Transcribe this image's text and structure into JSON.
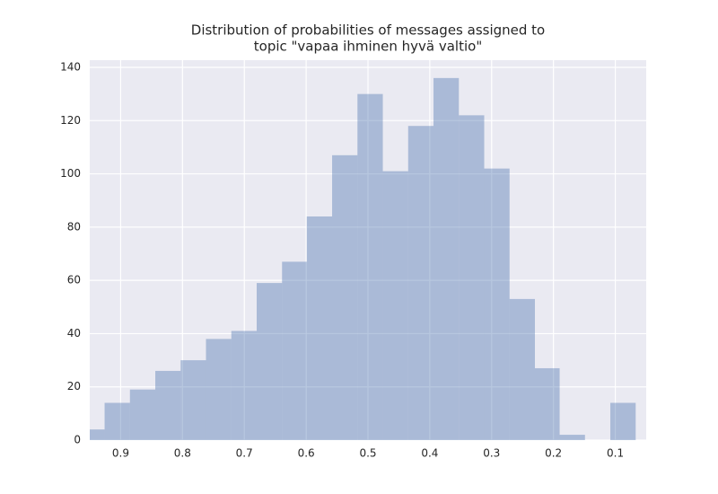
{
  "chart_data": {
    "type": "histogram",
    "title": [
      "Distribution of probabilities of messages assigned to",
      "topic \"vapaa ihminen hyvä valtio\""
    ],
    "bins": [
      0.067,
      0.108,
      0.149,
      0.19,
      0.23,
      0.271,
      0.312,
      0.353,
      0.394,
      0.435,
      0.476,
      0.517,
      0.558,
      0.599,
      0.639,
      0.68,
      0.721,
      0.762,
      0.803,
      0.844,
      0.885,
      0.926,
      0.967
    ],
    "values": [
      14,
      0,
      2,
      27,
      53,
      102,
      122,
      136,
      118,
      101,
      130,
      107,
      84,
      67,
      59,
      41,
      38,
      30,
      26,
      19,
      14,
      4
    ],
    "color": "#4c72b0",
    "xlim": [
      0.95,
      0.05
    ],
    "xticks": [
      0.9,
      0.8,
      0.7,
      0.6,
      0.5,
      0.4,
      0.3,
      0.2,
      0.1
    ],
    "ylim": [
      0,
      142.7
    ],
    "yticks": [
      0,
      20,
      40,
      60,
      80,
      100,
      120,
      140
    ],
    "grid": true
  }
}
